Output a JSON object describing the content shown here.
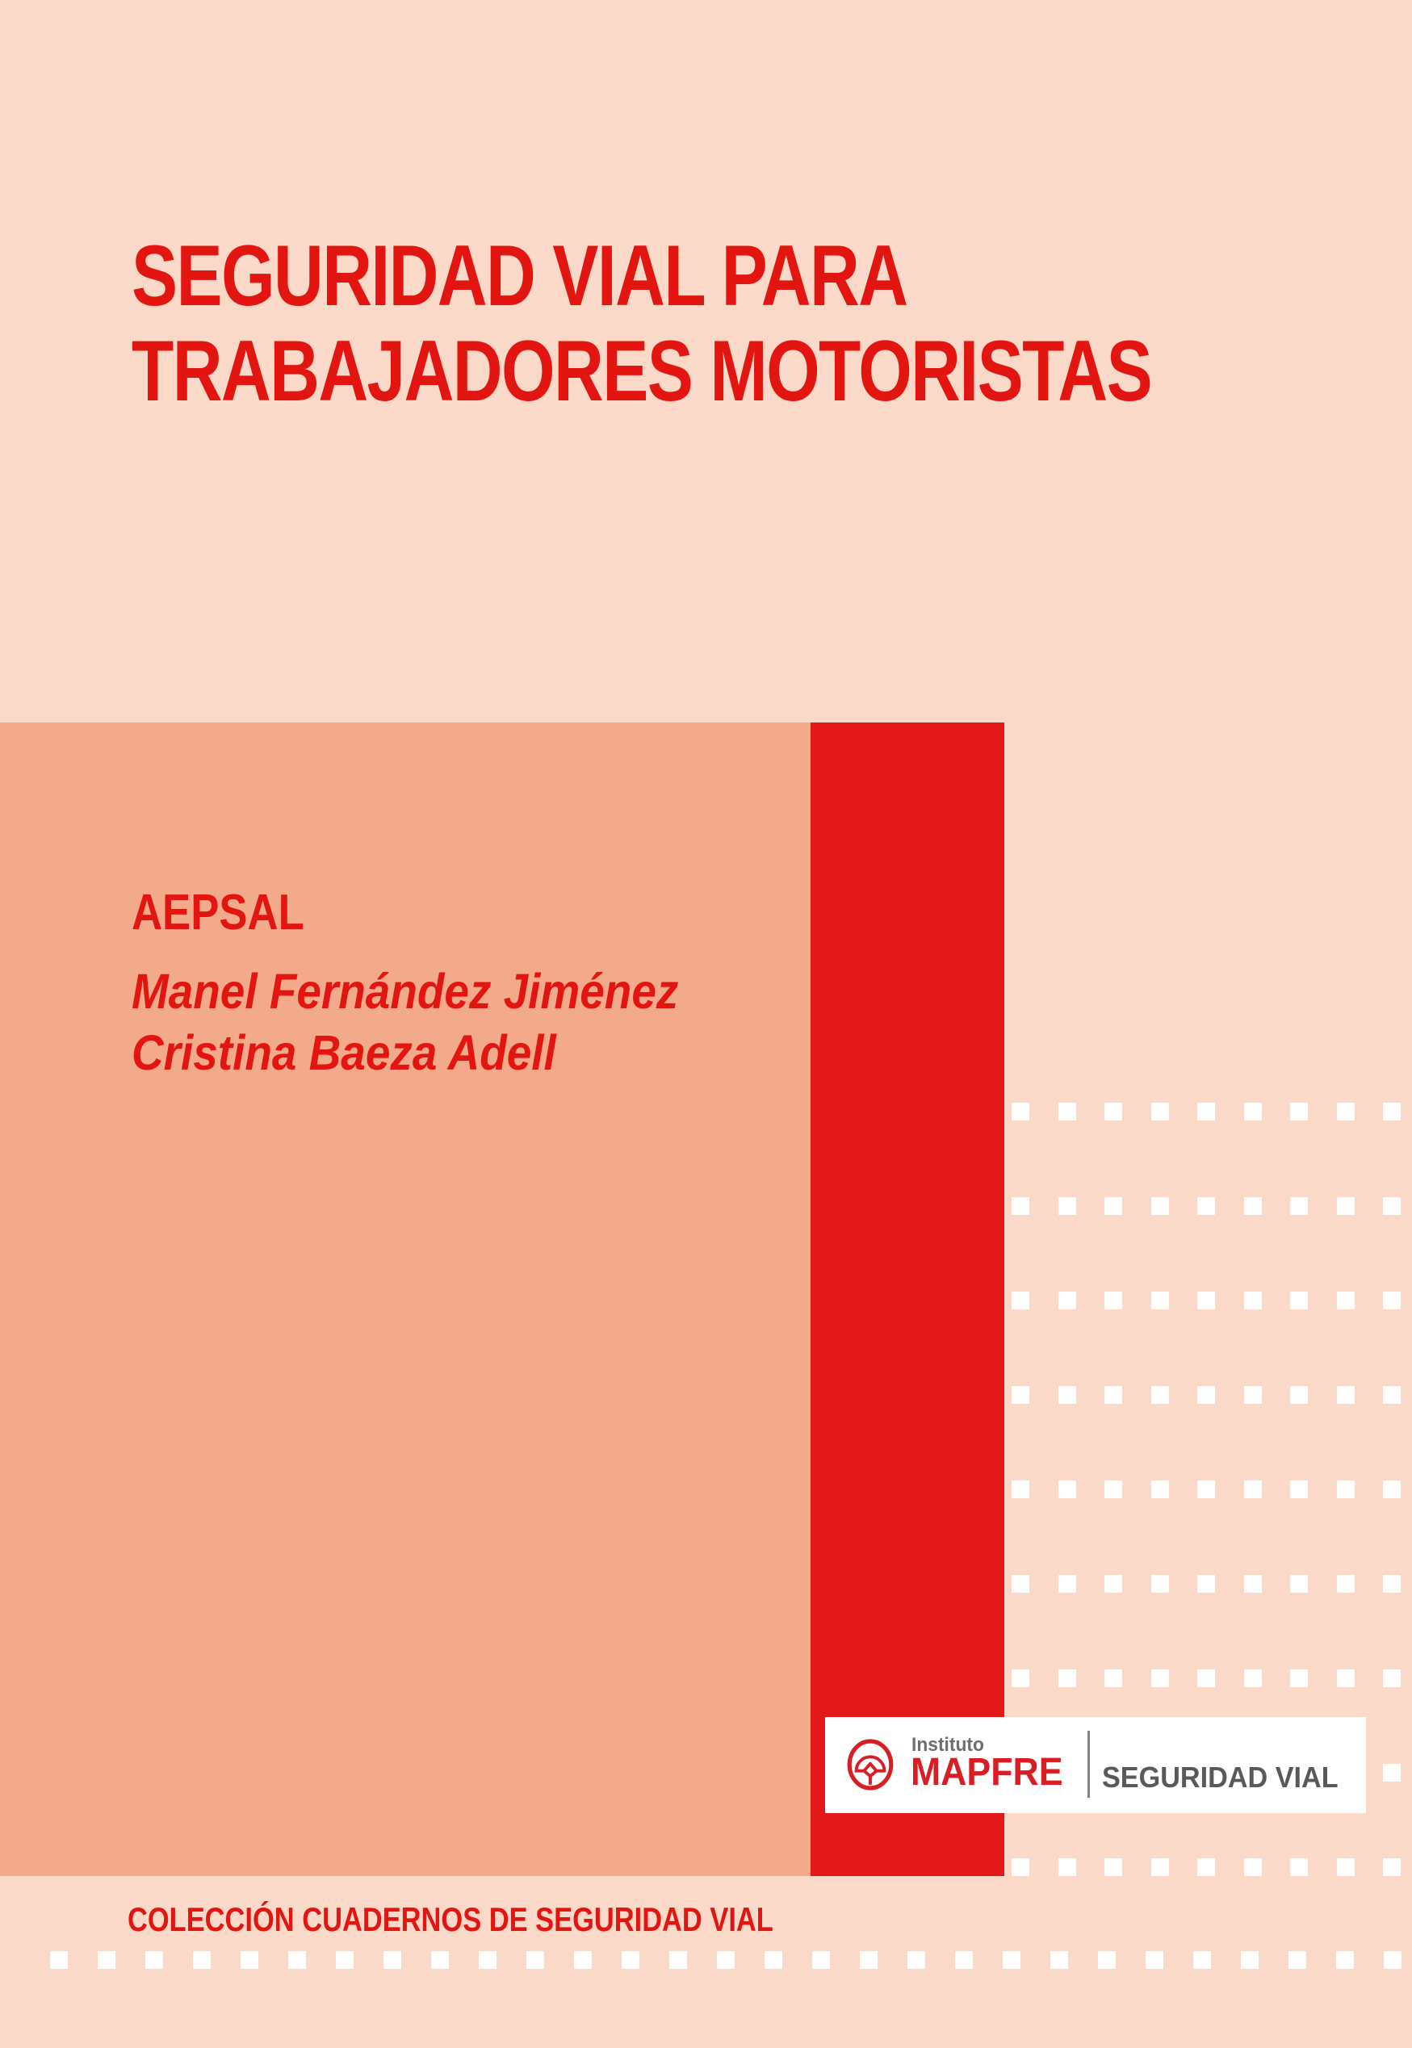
{
  "cover": {
    "title_line1": "SEGURIDAD VIAL PARA",
    "title_line2": "TRABAJADORES MOTORISTAS",
    "organization": "AEPSAL",
    "authors": {
      "line1": "Manel Fernández Jiménez",
      "line2": "Cristina Baeza Adell"
    },
    "collection_label": "COLECCIÓN CUADERNOS DE SEGURIDAD VIAL"
  },
  "publisher_badge": {
    "institute_label": "Instituto",
    "brand": "MAPFRE",
    "division": "SEGURIDAD VIAL",
    "logo_icon": "mapfre-umbrella-icon"
  },
  "colors": {
    "background_pink": "#FBD9C8",
    "salmon_block": "#F3AA8B",
    "accent_red": "#E2181B",
    "text_red": "#E31511",
    "mapfre_red": "#D81E24",
    "institute_gray": "#6D6E71",
    "division_gray": "#58595B",
    "dot_white": "#FFFFFF"
  }
}
